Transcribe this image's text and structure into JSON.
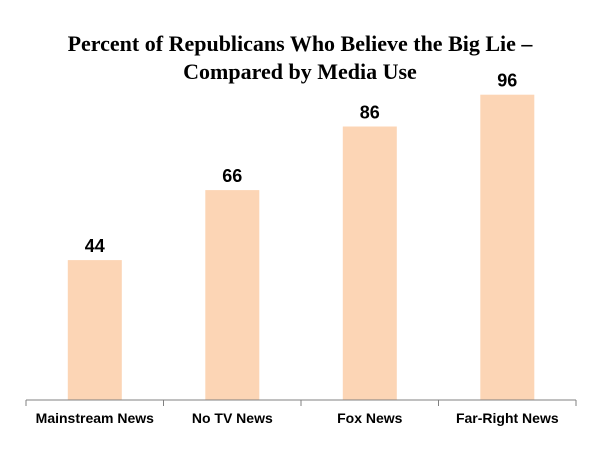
{
  "chart_data": {
    "type": "bar",
    "title_lines": [
      "Percent of  Republicans Who  Believe the Big Lie –",
      "Compared by Media Use"
    ],
    "categories": [
      "Mainstream News",
      "No TV News",
      "Fox News",
      "Far-Right News"
    ],
    "values": [
      44,
      66,
      86,
      96
    ],
    "data_labels": [
      "44",
      "66",
      "86",
      "96"
    ],
    "xlabel": "",
    "ylabel": "",
    "ylim": [
      0,
      100
    ],
    "grid": false,
    "legend": "none",
    "bar_color": "#fcd5b5",
    "axis_color": "#808080"
  }
}
